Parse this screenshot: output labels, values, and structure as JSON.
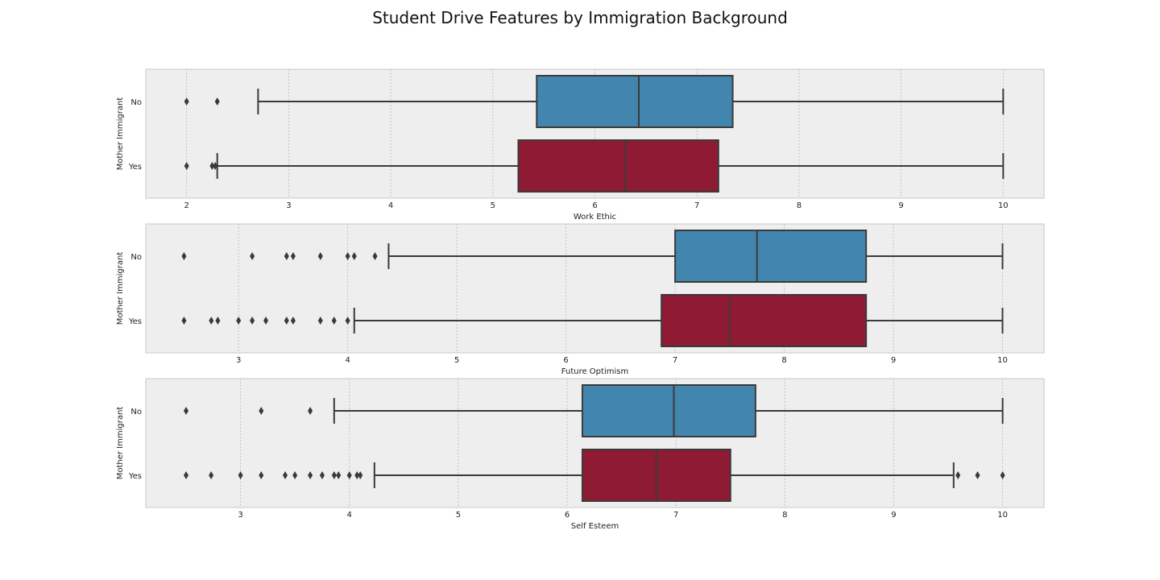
{
  "chart_data": {
    "type": "box",
    "title": "Student Drive Features by Immigration Background",
    "ylabel": "Mother Immigrant",
    "categories": [
      "No",
      "Yes"
    ],
    "colors": {
      "No": "#4286b0",
      "Yes": "#8f1a33"
    },
    "grid": "x",
    "panels": [
      {
        "xlabel": "Work Ethic",
        "xlim": [
          1.6,
          10.4
        ],
        "xticks": [
          2,
          3,
          4,
          5,
          6,
          7,
          8,
          9,
          10
        ],
        "boxes": [
          {
            "category": "No",
            "whisker_low": 2.7,
            "q1": 5.43,
            "median": 6.43,
            "q3": 7.35,
            "whisker_high": 10.0,
            "outliers": [
              2.0,
              2.3
            ]
          },
          {
            "category": "Yes",
            "whisker_low": 2.3,
            "q1": 5.25,
            "median": 6.3,
            "q3": 7.21,
            "whisker_high": 10.0,
            "outliers": [
              2.0,
              2.25,
              2.28
            ]
          }
        ]
      },
      {
        "xlabel": "Future Optimism",
        "xlim": [
          2.15,
          10.38
        ],
        "xticks": [
          3,
          4,
          5,
          6,
          7,
          8,
          9,
          10
        ],
        "boxes": [
          {
            "category": "No",
            "whisker_low": 4.375,
            "q1": 7.0,
            "median": 7.75,
            "q3": 8.75,
            "whisker_high": 10.0,
            "outliers": [
              2.5,
              3.125,
              3.44,
              3.5,
              3.75,
              4.0,
              4.06,
              4.25
            ]
          },
          {
            "category": "Yes",
            "whisker_low": 4.06,
            "q1": 6.875,
            "median": 7.5,
            "q3": 8.75,
            "whisker_high": 10.0,
            "outliers": [
              2.5,
              2.75,
              2.81,
              3.0,
              3.125,
              3.25,
              3.44,
              3.5,
              3.75,
              3.875,
              4.0
            ]
          }
        ]
      },
      {
        "xlabel": "Self Esteem",
        "xlim": [
          2.13,
          10.38
        ],
        "xticks": [
          3,
          4,
          5,
          6,
          7,
          8,
          9,
          10
        ],
        "boxes": [
          {
            "category": "No",
            "whisker_low": 3.86,
            "q1": 6.14,
            "median": 6.98,
            "q3": 7.73,
            "whisker_high": 10.0,
            "outliers": [
              2.5,
              3.19,
              3.64
            ]
          },
          {
            "category": "Yes",
            "whisker_low": 4.23,
            "q1": 6.14,
            "median": 6.82,
            "q3": 7.5,
            "whisker_high": 9.55,
            "outliers": [
              2.5,
              2.73,
              3.0,
              3.19,
              3.41,
              3.5,
              3.64,
              3.75,
              3.86,
              3.9,
              4.0,
              4.07,
              4.1,
              9.59,
              9.77,
              10.0
            ]
          }
        ]
      }
    ]
  }
}
